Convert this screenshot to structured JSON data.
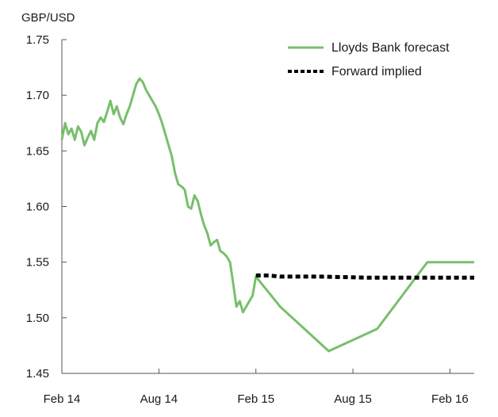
{
  "chart_data": {
    "type": "line",
    "title": "",
    "ylabel": "GBP/USD",
    "xlabel": "",
    "ylim": [
      1.45,
      1.75
    ],
    "yticks": [
      1.75,
      1.7,
      1.65,
      1.6,
      1.55,
      1.5,
      1.45
    ],
    "ytick_labels": [
      "1.75",
      "1.70",
      "1.65",
      "1.60",
      "1.55",
      "1.50",
      "1.45"
    ],
    "xrange_months": [
      0,
      25.5
    ],
    "xticks": [
      {
        "label": "Feb 14",
        "month": 0
      },
      {
        "label": "Aug 14",
        "month": 6
      },
      {
        "label": "Feb 15",
        "month": 12
      },
      {
        "label": "Aug 15",
        "month": 18
      },
      {
        "label": "Feb 16",
        "month": 24
      }
    ],
    "colors": {
      "forecast": "#78bf6c",
      "forward": "#000000",
      "axis": "#555555"
    },
    "series": [
      {
        "name": "Lloyds Bank forecast",
        "style": "solid",
        "x": [
          0,
          0.2,
          0.4,
          0.6,
          0.8,
          1.0,
          1.2,
          1.4,
          1.6,
          1.8,
          2.0,
          2.2,
          2.4,
          2.6,
          2.8,
          3.0,
          3.2,
          3.4,
          3.6,
          3.8,
          4.0,
          4.2,
          4.4,
          4.6,
          4.8,
          5.0,
          5.2,
          5.4,
          5.6,
          5.8,
          6.0,
          6.2,
          6.4,
          6.6,
          6.8,
          7.0,
          7.2,
          7.4,
          7.6,
          7.8,
          8.0,
          8.2,
          8.4,
          8.6,
          8.8,
          9.0,
          9.2,
          9.4,
          9.6,
          9.8,
          10.0,
          10.2,
          10.4,
          10.6,
          10.8,
          11.0,
          11.2,
          11.4,
          11.6,
          11.8,
          12.0,
          13.5,
          16.5,
          19.5,
          22.6,
          25.5
        ],
        "y": [
          1.66,
          1.675,
          1.665,
          1.67,
          1.66,
          1.672,
          1.667,
          1.655,
          1.662,
          1.668,
          1.66,
          1.675,
          1.68,
          1.676,
          1.685,
          1.695,
          1.683,
          1.69,
          1.68,
          1.674,
          1.683,
          1.69,
          1.7,
          1.71,
          1.715,
          1.712,
          1.705,
          1.7,
          1.695,
          1.69,
          1.683,
          1.675,
          1.665,
          1.655,
          1.645,
          1.63,
          1.62,
          1.618,
          1.615,
          1.6,
          1.598,
          1.61,
          1.605,
          1.593,
          1.583,
          1.576,
          1.565,
          1.568,
          1.57,
          1.56,
          1.558,
          1.555,
          1.55,
          1.53,
          1.51,
          1.515,
          1.505,
          1.51,
          1.515,
          1.52,
          1.537,
          1.51,
          1.47,
          1.49,
          1.55,
          1.55
        ]
      },
      {
        "name": "Forward implied",
        "style": "dashed",
        "x": [
          12,
          12.8,
          13.5,
          16,
          19,
          22,
          25.5
        ],
        "y": [
          1.538,
          1.538,
          1.537,
          1.537,
          1.536,
          1.536,
          1.536
        ]
      }
    ],
    "legend": {
      "position": "top-right",
      "entries": [
        "Lloyds Bank forecast",
        "Forward implied"
      ]
    },
    "grid": false
  }
}
